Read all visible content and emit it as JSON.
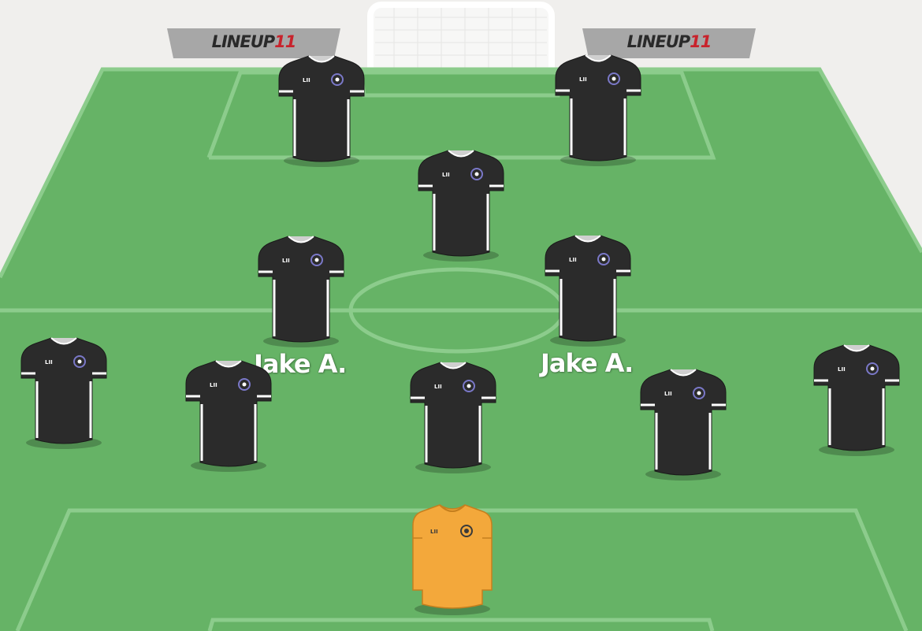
{
  "brand": {
    "wordmark": "LINEUP",
    "number": "11",
    "accent_color": "#c8232c"
  },
  "pitch": {
    "grass_color": "#66b366",
    "line_color": "#8ccc8c",
    "background_color": "#f0efed"
  },
  "kit": {
    "outfield": {
      "body": "#2b2b2b",
      "trim": "#ffffff",
      "badge": "#7a78c8",
      "badge_text": "LII"
    },
    "goalkeeper": {
      "body": "#f3a83b",
      "trim": "#c57f1e",
      "badge": "#3a3a3a",
      "badge_text": "LII"
    }
  },
  "players": [
    {
      "id": "st-left",
      "role": "outfield",
      "name": ""
    },
    {
      "id": "st-right",
      "role": "outfield",
      "name": ""
    },
    {
      "id": "cam",
      "role": "outfield",
      "name": ""
    },
    {
      "id": "cm-left",
      "role": "outfield",
      "name": "Jake A."
    },
    {
      "id": "cm-right",
      "role": "outfield",
      "name": "Jake A."
    },
    {
      "id": "lb",
      "role": "outfield",
      "name": ""
    },
    {
      "id": "lcb",
      "role": "outfield",
      "name": ""
    },
    {
      "id": "cb",
      "role": "outfield",
      "name": ""
    },
    {
      "id": "rcb",
      "role": "outfield",
      "name": ""
    },
    {
      "id": "rb",
      "role": "outfield",
      "name": ""
    },
    {
      "id": "gk",
      "role": "goalkeeper",
      "name": ""
    }
  ]
}
